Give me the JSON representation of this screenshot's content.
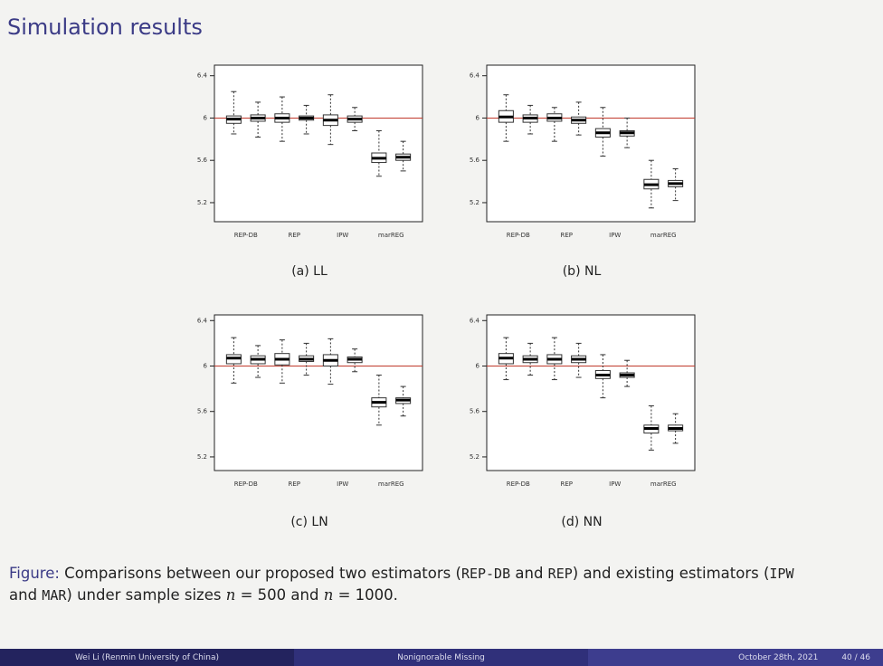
{
  "title": "Simulation results",
  "chart_data": [
    {
      "type": "box",
      "subtitle": "(a) LL",
      "categories": [
        "REP-DB",
        "REP",
        "IPW",
        "marREG"
      ],
      "ylim": [
        5.02,
        6.5
      ],
      "yticks": [
        5.2,
        5.6,
        6,
        6.4
      ],
      "hline": 6,
      "hline_color": "#c0392b",
      "boxes": [
        {
          "min": 5.85,
          "q1": 5.95,
          "median": 5.99,
          "q3": 6.02,
          "max": 6.25
        },
        {
          "min": 5.82,
          "q1": 5.97,
          "median": 6.0,
          "q3": 6.03,
          "max": 6.15
        },
        {
          "min": 5.78,
          "q1": 5.96,
          "median": 6.0,
          "q3": 6.04,
          "max": 6.2
        },
        {
          "min": 5.85,
          "q1": 5.98,
          "median": 6.0,
          "q3": 6.02,
          "max": 6.12
        },
        {
          "min": 5.75,
          "q1": 5.93,
          "median": 5.98,
          "q3": 6.03,
          "max": 6.22
        },
        {
          "min": 5.88,
          "q1": 5.96,
          "median": 5.99,
          "q3": 6.02,
          "max": 6.1
        },
        {
          "min": 5.45,
          "q1": 5.58,
          "median": 5.62,
          "q3": 5.67,
          "max": 5.88
        },
        {
          "min": 5.5,
          "q1": 5.6,
          "median": 5.63,
          "q3": 5.66,
          "max": 5.78
        }
      ]
    },
    {
      "type": "box",
      "subtitle": "(b) NL",
      "categories": [
        "REP-DB",
        "REP",
        "IPW",
        "marREG"
      ],
      "ylim": [
        5.02,
        6.5
      ],
      "yticks": [
        5.2,
        5.6,
        6,
        6.4
      ],
      "hline": 6,
      "hline_color": "#c0392b",
      "boxes": [
        {
          "min": 5.78,
          "q1": 5.96,
          "median": 6.01,
          "q3": 6.07,
          "max": 6.22
        },
        {
          "min": 5.85,
          "q1": 5.96,
          "median": 6.0,
          "q3": 6.03,
          "max": 6.12
        },
        {
          "min": 5.78,
          "q1": 5.97,
          "median": 6.0,
          "q3": 6.04,
          "max": 6.1
        },
        {
          "min": 5.84,
          "q1": 5.95,
          "median": 5.98,
          "q3": 6.01,
          "max": 6.15
        },
        {
          "min": 5.64,
          "q1": 5.82,
          "median": 5.86,
          "q3": 5.9,
          "max": 6.1
        },
        {
          "min": 5.72,
          "q1": 5.83,
          "median": 5.86,
          "q3": 5.88,
          "max": 6.0
        },
        {
          "min": 5.15,
          "q1": 5.33,
          "median": 5.37,
          "q3": 5.42,
          "max": 5.6
        },
        {
          "min": 5.22,
          "q1": 5.35,
          "median": 5.38,
          "q3": 5.41,
          "max": 5.52
        }
      ]
    },
    {
      "type": "box",
      "subtitle": "(c) LN",
      "categories": [
        "REP-DB",
        "REP",
        "IPW",
        "marREG"
      ],
      "ylim": [
        5.08,
        6.45
      ],
      "yticks": [
        5.2,
        5.6,
        6,
        6.4
      ],
      "hline": 6,
      "hline_color": "#c0392b",
      "boxes": [
        {
          "min": 5.85,
          "q1": 6.02,
          "median": 6.07,
          "q3": 6.1,
          "max": 6.25
        },
        {
          "min": 5.9,
          "q1": 6.02,
          "median": 6.06,
          "q3": 6.09,
          "max": 6.18
        },
        {
          "min": 5.85,
          "q1": 6.01,
          "median": 6.06,
          "q3": 6.11,
          "max": 6.23
        },
        {
          "min": 5.92,
          "q1": 6.04,
          "median": 6.06,
          "q3": 6.09,
          "max": 6.2
        },
        {
          "min": 5.84,
          "q1": 6.0,
          "median": 6.05,
          "q3": 6.1,
          "max": 6.24
        },
        {
          "min": 5.95,
          "q1": 6.03,
          "median": 6.06,
          "q3": 6.08,
          "max": 6.15
        },
        {
          "min": 5.48,
          "q1": 5.64,
          "median": 5.68,
          "q3": 5.72,
          "max": 5.92
        },
        {
          "min": 5.56,
          "q1": 5.67,
          "median": 5.7,
          "q3": 5.72,
          "max": 5.82
        }
      ]
    },
    {
      "type": "box",
      "subtitle": "(d) NN",
      "categories": [
        "REP-DB",
        "REP",
        "IPW",
        "marREG"
      ],
      "ylim": [
        5.08,
        6.45
      ],
      "yticks": [
        5.2,
        5.6,
        6,
        6.4
      ],
      "hline": 6,
      "hline_color": "#c0392b",
      "boxes": [
        {
          "min": 5.88,
          "q1": 6.02,
          "median": 6.07,
          "q3": 6.11,
          "max": 6.25
        },
        {
          "min": 5.92,
          "q1": 6.03,
          "median": 6.06,
          "q3": 6.09,
          "max": 6.2
        },
        {
          "min": 5.88,
          "q1": 6.02,
          "median": 6.06,
          "q3": 6.1,
          "max": 6.25
        },
        {
          "min": 5.9,
          "q1": 6.03,
          "median": 6.06,
          "q3": 6.09,
          "max": 6.2
        },
        {
          "min": 5.72,
          "q1": 5.89,
          "median": 5.92,
          "q3": 5.96,
          "max": 6.1
        },
        {
          "min": 5.82,
          "q1": 5.9,
          "median": 5.92,
          "q3": 5.94,
          "max": 6.05
        },
        {
          "min": 5.26,
          "q1": 5.41,
          "median": 5.45,
          "q3": 5.48,
          "max": 5.65
        },
        {
          "min": 5.32,
          "q1": 5.43,
          "median": 5.45,
          "q3": 5.48,
          "max": 5.58
        }
      ]
    }
  ],
  "caption": [
    "Figure:",
    " Comparisons between our proposed two estimators (",
    "REP-DB",
    " and ",
    "REP",
    ") and existing estimators (",
    "IPW",
    " and ",
    "MAR",
    ") under sample sizes ",
    "n",
    " = 500 and ",
    "n",
    " = 1000."
  ],
  "footer": {
    "author": "Wei Li  (Renmin University of China)",
    "talk": "Nonignorable Missing",
    "date": "October 28th, 2021",
    "page": "40 / 46"
  }
}
